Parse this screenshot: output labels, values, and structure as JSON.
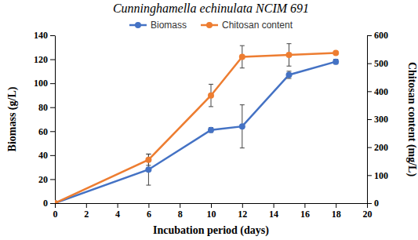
{
  "chart_data": {
    "type": "line",
    "title": "Cunninghamella echinulata NCIM 691",
    "x_label": "Incubation period (days)",
    "y_label": "Biomass (g/L)",
    "y2_label": "Chitosan content (mg/L)",
    "x": [
      0,
      6,
      10,
      12,
      15,
      18
    ],
    "series": [
      {
        "name": "Biomass",
        "color": "#4472c4",
        "marker": "circle",
        "axis": "y",
        "values": [
          0,
          28,
          61,
          64,
          107,
          118
        ],
        "errors": [
          0,
          13,
          2,
          18,
          3,
          2
        ]
      },
      {
        "name": "Chitosan content",
        "color": "#ed7d31",
        "marker": "circle",
        "axis": "y2",
        "values": [
          0,
          155,
          385,
          523,
          530,
          537
        ],
        "errors": [
          0,
          20,
          40,
          40,
          40,
          5
        ]
      }
    ],
    "xlim": [
      0,
      20
    ],
    "xticks": [
      0,
      2,
      4,
      6,
      8,
      10,
      12,
      14,
      16,
      18,
      20
    ],
    "ylim": [
      0,
      140
    ],
    "yticks": [
      0,
      20,
      40,
      60,
      80,
      100,
      120,
      140
    ],
    "y2lim": [
      0,
      600
    ],
    "y2ticks": [
      0,
      100,
      200,
      300,
      400,
      500,
      600
    ],
    "legend": "top",
    "grid": false
  }
}
